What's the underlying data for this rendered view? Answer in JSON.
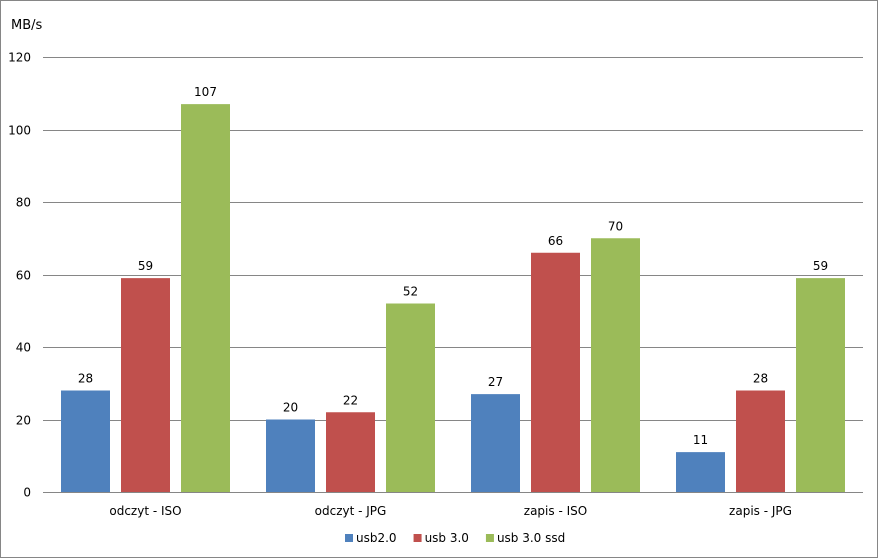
{
  "chart_data": {
    "type": "bar",
    "title": "",
    "xlabel": "",
    "ylabel": "MB/s",
    "ylim": [
      0,
      120
    ],
    "yticks": [
      0,
      20,
      40,
      60,
      80,
      100,
      120
    ],
    "grid": true,
    "legend_position": "bottom",
    "categories": [
      "odczyt - ISO",
      "odczyt - JPG",
      "zapis - ISO",
      "zapis - JPG"
    ],
    "series": [
      {
        "name": "usb2.0",
        "color": "#4F81BD",
        "values": [
          28,
          20,
          27,
          11
        ]
      },
      {
        "name": "usb 3.0",
        "color": "#C0504D",
        "values": [
          59,
          22,
          66,
          28
        ]
      },
      {
        "name": "usb 3.0 ssd",
        "color": "#9BBB59",
        "values": [
          107,
          52,
          70,
          59
        ]
      }
    ]
  }
}
